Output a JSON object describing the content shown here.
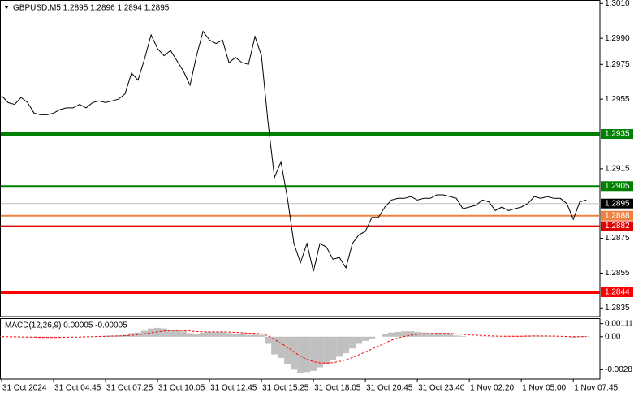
{
  "chart_data": [
    {
      "type": "line",
      "title": "GBPUSD,M5  1.2895 1.2896 1.2894 1.2895",
      "series": [
        {
          "color": "#000000",
          "values": [
            1.2957,
            1.2953,
            1.2952,
            1.2956,
            1.2953,
            1.2947,
            1.2946,
            1.2946,
            1.2947,
            1.2949,
            1.295,
            1.295,
            1.2952,
            1.295,
            1.2953,
            1.2954,
            1.2953,
            1.2954,
            1.2955,
            1.2958,
            1.297,
            1.2966,
            1.2978,
            1.2992,
            1.2984,
            1.298,
            1.2983,
            1.2977,
            1.2971,
            1.2963,
            1.298,
            1.2994,
            1.2989,
            1.2987,
            1.2989,
            1.2976,
            1.2979,
            1.2976,
            1.2975,
            1.2991,
            1.298,
            1.2942,
            1.291,
            1.2919,
            1.2898,
            1.2872,
            1.2861,
            1.2872,
            1.2856,
            1.2872,
            1.287,
            1.2863,
            1.2864,
            1.2858,
            1.2872,
            1.2877,
            1.2879,
            1.2887,
            1.2887,
            1.2893,
            1.2897,
            1.2898,
            1.2898,
            1.2899,
            1.2897,
            1.2898,
            1.2898,
            1.29,
            1.29,
            1.2899,
            1.2898,
            1.2892,
            1.2893,
            1.2894,
            1.2897,
            1.2896,
            1.2891,
            1.2893,
            1.2891,
            1.2892,
            1.2893,
            1.2895,
            1.2899,
            1.2898,
            1.2899,
            1.2898,
            1.2898,
            1.2895,
            1.2886,
            1.2896,
            1.2897
          ]
        }
      ],
      "xlim": [
        -0.25,
        92.1
      ],
      "xticks": [
        {
          "value": 0,
          "label": "31 Oct 2024"
        },
        {
          "value": 8,
          "label": "31 Oct 04:45"
        },
        {
          "value": 16,
          "label": "31 Oct 07:25"
        },
        {
          "value": 24,
          "label": "31 Oct 10:05"
        },
        {
          "value": 32,
          "label": "31 Oct 12:45"
        },
        {
          "value": 40,
          "label": "31 Oct 15:25"
        },
        {
          "value": 48,
          "label": "31 Oct 18:05"
        },
        {
          "value": 56,
          "label": "31 Oct 20:45"
        },
        {
          "value": 64,
          "label": "31 Oct 23:40"
        },
        {
          "value": 72,
          "label": "1 Nov 02:20"
        },
        {
          "value": 80,
          "label": "1 Nov 05:00"
        },
        {
          "value": 88,
          "label": "1 Nov 07:45"
        }
      ],
      "ylim": [
        1.283,
        1.3012
      ],
      "yticks": [
        {
          "value": 1.301,
          "label": "1.3010"
        },
        {
          "value": 1.299,
          "label": "1.2990"
        },
        1.2975,
        1.2955,
        1.2915,
        1.2875,
        1.2855,
        1.2835
      ],
      "levels": [
        {
          "value": 1.2935,
          "color": "#008000",
          "thick": true
        },
        {
          "value": 1.2905,
          "color": "#008000",
          "thick": false
        },
        {
          "value": 1.2888,
          "color": "#f08040",
          "thick": false
        },
        {
          "value": 1.2882,
          "color": "#e00000",
          "thick": false
        },
        {
          "value": 1.2844,
          "color": "#ff0000",
          "thick": true
        }
      ],
      "current_price": 1.2895,
      "grid": false
    },
    {
      "type": "macd",
      "title": "MACD(12,26,9) 0.00005 -0.00005",
      "series": [
        {
          "type": "bar",
          "color": "#c0c0c0",
          "values": [
            3e-05,
            2e-05,
            -3e-05,
            -4e-05,
            -5e-05,
            -8e-05,
            -0.0001,
            -8e-05,
            -6e-05,
            -4e-05,
            -3e-05,
            -2e-05,
            0,
            1e-05,
            3e-05,
            5e-05,
            6e-05,
            8e-05,
            0.0001,
            0.00015,
            0.0003,
            0.00035,
            0.0005,
            0.0007,
            0.00075,
            0.0007,
            0.0006,
            0.00055,
            0.00045,
            0.0003,
            0.00025,
            0.00035,
            0.0004,
            0.0004,
            0.0004,
            0.0003,
            0.00025,
            0.0002,
            0.00015,
            0.00025,
            0.00015,
            -0.0006,
            -0.0015,
            -0.0018,
            -0.0023,
            -0.0028,
            -0.0031,
            -0.003,
            -0.0029,
            -0.0026,
            -0.0023,
            -0.002,
            -0.0017,
            -0.0014,
            -0.001,
            -0.0006,
            -0.00035,
            -0.00015,
            0,
            0.0002,
            0.00035,
            0.0004,
            0.00045,
            0.00045,
            0.0004,
            0.00035,
            0.0003,
            0.0003,
            0.00025,
            0.0002,
            0.0001,
            5e-05,
            0,
            0,
            3e-05,
            -2e-05,
            -3e-05,
            -2e-05,
            0,
            2e-05,
            5e-05,
            8e-05,
            0.0001,
            8e-05,
            5e-05,
            3e-05,
            2e-05,
            -3e-05,
            -8e-05,
            -3e-05,
            5e-05
          ]
        },
        {
          "type": "line",
          "color": "#ff0000",
          "dashed": true,
          "values": [
            0,
            0,
            -1e-05,
            -2e-05,
            -3e-05,
            -4e-05,
            -6e-05,
            -7e-05,
            -7e-05,
            -6e-05,
            -5e-05,
            -4e-05,
            -3e-05,
            -1e-05,
            0,
            2e-05,
            3e-05,
            5e-05,
            6e-05,
            8e-05,
            0.00012,
            0.00017,
            0.00024,
            0.00033,
            0.00042,
            0.00048,
            0.00052,
            0.00053,
            0.00052,
            0.00048,
            0.00044,
            0.00042,
            0.00041,
            0.00041,
            0.00041,
            0.00039,
            0.00036,
            0.00033,
            0.00029,
            0.00028,
            0.00025,
            8e-05,
            -0.00024,
            -0.00055,
            -0.0009,
            -0.00128,
            -0.00165,
            -0.00192,
            -0.00212,
            -0.00222,
            -0.00224,
            -0.0022,
            -0.0021,
            -0.00196,
            -0.00177,
            -0.00154,
            -0.0013,
            -0.00105,
            -0.0008,
            -0.00055,
            -0.0003,
            -0.00012,
            2e-05,
            0.00012,
            0.0002,
            0.00025,
            0.00027,
            0.00028,
            0.00028,
            0.00027,
            0.00023,
            0.00019,
            0.00015,
            0.00012,
            0.0001,
            7e-05,
            5e-05,
            4e-05,
            3e-05,
            3e-05,
            4e-05,
            5e-05,
            6e-05,
            6e-05,
            6e-05,
            5e-05,
            3e-05,
            1e-05,
            0,
            0,
            1e-05
          ]
        }
      ],
      "xlim": [
        -0.25,
        92.1
      ],
      "ylim": [
        -0.0036,
        0.0015
      ],
      "yticks": [
        0.00111,
        {
          "value": 0,
          "label": "0.00"
        },
        -0.0028
      ]
    }
  ]
}
